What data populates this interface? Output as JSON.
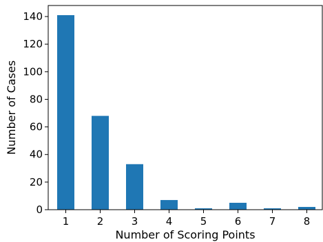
{
  "chart_data": {
    "type": "bar",
    "title": "",
    "xlabel": "Number of Scoring Points",
    "ylabel": "Number of Cases",
    "categories": [
      "1",
      "2",
      "3",
      "4",
      "5",
      "6",
      "7",
      "8"
    ],
    "values": [
      141,
      68,
      33,
      7,
      1,
      5,
      1,
      2
    ],
    "ylim": [
      0,
      148
    ],
    "yticks": [
      0,
      20,
      40,
      60,
      80,
      100,
      120,
      140
    ],
    "bar_color": "#1f77b4",
    "grid": false,
    "legend": "none"
  }
}
